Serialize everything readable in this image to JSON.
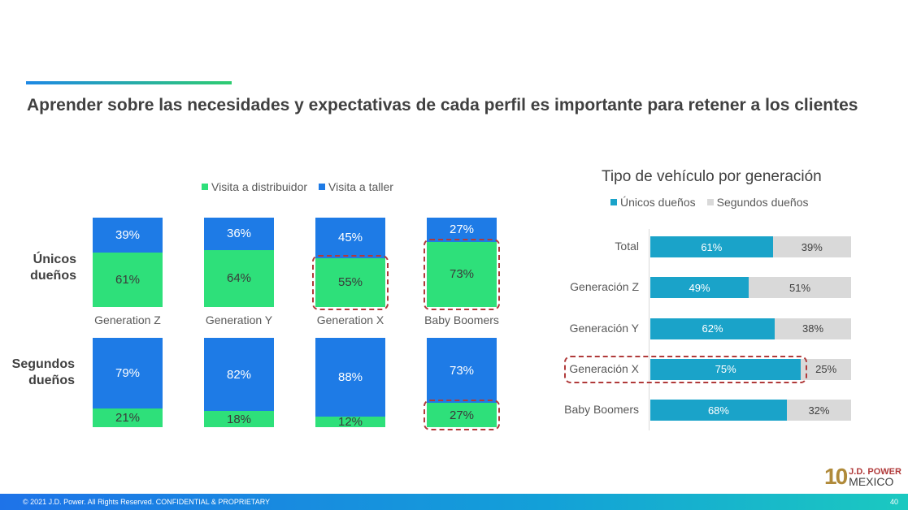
{
  "slide": {
    "title": "Aprender sobre las necesidades y expectativas de cada perfil es importante para retener a los clientes",
    "footer_copyright": "© 2021 J.D. Power. All Rights Reserved. CONFIDENTIAL & PROPRIETARY",
    "page_number": "40",
    "logo_number": "10",
    "logo_brand": "J.D. POWER",
    "logo_country": "MEXICO"
  },
  "colors": {
    "green": "#2ee07a",
    "blue": "#1e7be6",
    "teal": "#1aa3c9",
    "grey": "#d9d9d9",
    "highlight": "#b03a3a"
  },
  "chart_data": [
    {
      "type": "bar",
      "stacked": true,
      "legend": [
        "Visita a distribuidor",
        "Visita a taller"
      ],
      "categories": [
        "Generation Z",
        "Generation Y",
        "Generation X",
        "Baby Boomers"
      ],
      "groups": [
        {
          "name": "Únicos dueños",
          "series": [
            {
              "name": "Visita a distribuidor",
              "values": [
                61,
                64,
                55,
                73
              ]
            },
            {
              "name": "Visita a taller",
              "values": [
                39,
                36,
                45,
                27
              ]
            }
          ]
        },
        {
          "name": "Segundos dueños",
          "series": [
            {
              "name": "Visita a distribuidor",
              "values": [
                21,
                18,
                12,
                27
              ]
            },
            {
              "name": "Visita a taller",
              "values": [
                79,
                82,
                88,
                73
              ]
            }
          ]
        }
      ],
      "highlighted": [
        {
          "group": "Únicos dueños",
          "category": "Generation X",
          "series": "Visita a distribuidor"
        },
        {
          "group": "Únicos dueños",
          "category": "Baby Boomers",
          "series": "Visita a distribuidor"
        },
        {
          "group": "Segundos dueños",
          "category": "Baby Boomers",
          "series": "Visita a distribuidor"
        }
      ]
    },
    {
      "type": "bar",
      "orientation": "horizontal",
      "stacked": true,
      "title": "Tipo de vehículo por generación",
      "legend": [
        "Únicos dueños",
        "Segundos dueños"
      ],
      "categories": [
        "Total",
        "Generación Z",
        "Generación Y",
        "Generación X",
        "Baby Boomers"
      ],
      "series": [
        {
          "name": "Únicos dueños",
          "values": [
            61,
            49,
            62,
            75,
            68
          ]
        },
        {
          "name": "Segundos dueños",
          "values": [
            39,
            51,
            38,
            25,
            32
          ]
        }
      ],
      "highlighted": [
        "Generación X"
      ]
    }
  ]
}
